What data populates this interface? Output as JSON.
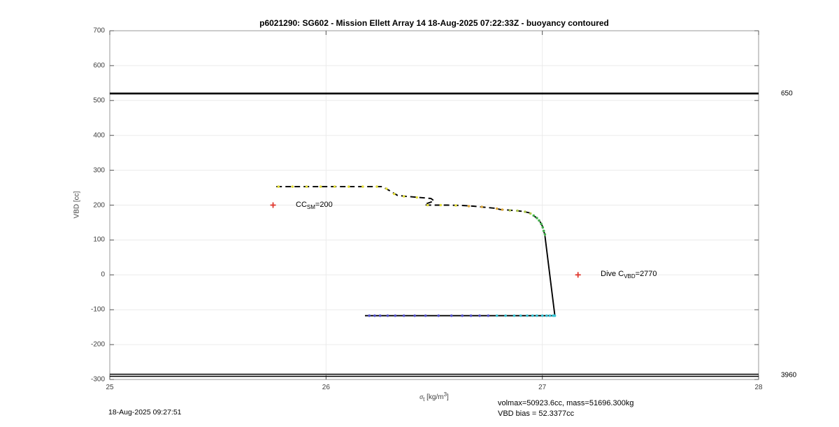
{
  "title": "p6021290: SG602 - Mission Ellett Array 14 18-Aug-2025 07:22:33Z - buoyancy contoured",
  "footer": {
    "datetime": "18-Aug-2025 09:27:51",
    "volmax_line": "volmax=50923.6cc, mass=51696.300kg",
    "bias_line": "VBD bias = 52.3377cc"
  },
  "chart_data": {
    "type": "line",
    "title": "p6021290: SG602 - Mission Ellett Array 14 18-Aug-2025 07:22:33Z - buoyancy contoured",
    "ylabel": "VBD [cc]",
    "xlabel_parts": [
      {
        "t": "σ",
        "style": "italic"
      },
      {
        "t": "t",
        "style": "sub"
      },
      {
        "t": " [kg/m",
        "style": ""
      },
      {
        "t": "3",
        "style": "sup"
      },
      {
        "t": "]",
        "style": ""
      }
    ],
    "xlim": [
      25,
      28
    ],
    "ylim": [
      -300,
      700
    ],
    "xticks": [
      25,
      26,
      27,
      28
    ],
    "yticks": [
      700,
      600,
      500,
      400,
      300,
      200,
      100,
      0,
      -100,
      -200,
      -300
    ],
    "grid": true,
    "limit_lines": [
      {
        "vbd": 520,
        "label": "650",
        "double": false
      },
      {
        "vbd": -288,
        "label": "3960",
        "double": true
      }
    ],
    "series": [
      {
        "name": "dive-profile",
        "style": "dashed",
        "points": [
          [
            25.77,
            253
          ],
          [
            26.26,
            253
          ],
          [
            26.295,
            241
          ],
          [
            26.33,
            228
          ],
          [
            26.37,
            225
          ],
          [
            26.43,
            222
          ],
          [
            26.485,
            219
          ],
          [
            26.5,
            212
          ],
          [
            26.455,
            202
          ],
          [
            26.465,
            200
          ],
          [
            26.56,
            200
          ],
          [
            26.63,
            199
          ],
          [
            26.68,
            197
          ],
          [
            26.73,
            194
          ],
          [
            26.78,
            191
          ],
          [
            26.81,
            187
          ],
          [
            26.84,
            186
          ],
          [
            26.88,
            184
          ],
          [
            26.91,
            182
          ],
          [
            26.94,
            178
          ],
          [
            26.955,
            172
          ],
          [
            26.975,
            163
          ],
          [
            26.99,
            152
          ],
          [
            27.0,
            140
          ],
          [
            27.005,
            128
          ],
          [
            27.012,
            115
          ]
        ]
      },
      {
        "name": "steep-descent-and-apogee",
        "style": "solid",
        "points": [
          [
            27.012,
            112
          ],
          [
            27.058,
            -117
          ],
          [
            26.18,
            -117
          ]
        ]
      }
    ],
    "markers": [
      {
        "color_key": "yellow",
        "points": [
          [
            25.78,
            253
          ],
          [
            25.845,
            253
          ],
          [
            25.91,
            253
          ],
          [
            25.975,
            253
          ],
          [
            26.04,
            253
          ],
          [
            26.105,
            253
          ],
          [
            26.17,
            253
          ],
          [
            26.235,
            253
          ],
          [
            26.28,
            247
          ],
          [
            26.315,
            232
          ],
          [
            26.36,
            225
          ],
          [
            26.42,
            222
          ],
          [
            26.47,
            200
          ],
          [
            26.53,
            200
          ],
          [
            26.6,
            199
          ]
        ]
      },
      {
        "color_key": "orange",
        "points": [
          [
            26.66,
            197
          ],
          [
            26.72,
            195
          ],
          [
            26.79,
            190
          ],
          [
            26.815,
            187
          ]
        ]
      },
      {
        "color_key": "yellowgreen",
        "points": [
          [
            26.85,
            185
          ],
          [
            26.885,
            184
          ],
          [
            26.92,
            181
          ],
          [
            26.945,
            176
          ]
        ]
      },
      {
        "color_key": "green",
        "points": [
          [
            26.96,
            170
          ],
          [
            26.975,
            163
          ],
          [
            26.985,
            156
          ],
          [
            26.995,
            146
          ],
          [
            27.002,
            136
          ],
          [
            27.007,
            126
          ],
          [
            27.012,
            116
          ]
        ]
      },
      {
        "color_key": "blue",
        "points": [
          [
            26.2,
            -117
          ],
          [
            26.225,
            -117
          ],
          [
            26.25,
            -117
          ],
          [
            26.285,
            -117
          ],
          [
            26.32,
            -117
          ],
          [
            26.36,
            -117
          ],
          [
            26.41,
            -117
          ],
          [
            26.46,
            -117
          ],
          [
            26.52,
            -117
          ],
          [
            26.58,
            -117
          ],
          [
            26.63,
            -117
          ],
          [
            26.67,
            -117
          ],
          [
            26.71,
            -117
          ],
          [
            26.75,
            -117
          ]
        ]
      },
      {
        "color_key": "cyan",
        "points": [
          [
            26.79,
            -117
          ],
          [
            26.83,
            -117
          ],
          [
            26.87,
            -117
          ],
          [
            26.9,
            -117
          ],
          [
            26.93,
            -117
          ],
          [
            26.955,
            -117
          ],
          [
            26.975,
            -117
          ],
          [
            27.0,
            -117
          ],
          [
            27.02,
            -117
          ],
          [
            27.035,
            -117
          ],
          [
            27.05,
            -117
          ],
          [
            27.058,
            -117
          ]
        ]
      }
    ],
    "ref_points": [
      {
        "name": "cc-sm",
        "sigma": 25.755,
        "vbd": 200,
        "marker": "plus",
        "label_sigma": 25.86,
        "label_parts": [
          {
            "t": "CC",
            "style": ""
          },
          {
            "t": "SM",
            "style": "sub"
          },
          {
            "t": "=200",
            "style": ""
          }
        ]
      },
      {
        "name": "dive-c-vbd",
        "sigma": 27.165,
        "vbd": 0,
        "marker": "plus",
        "label_sigma": 27.27,
        "label_parts": [
          {
            "t": "Dive C",
            "style": ""
          },
          {
            "t": "VBD",
            "style": "sub"
          },
          {
            "t": "=2770",
            "style": ""
          }
        ]
      }
    ],
    "colors": {
      "yellow": "#e4de3c",
      "orange": "#dfa83a",
      "yellowgreen": "#afc94b",
      "green": "#43b04d",
      "blue": "#5352cb",
      "cyan": "#37c4d5",
      "red": "#e0392f",
      "line": "#000000",
      "grid": "#ebebeb",
      "axis": "#999999",
      "tick": "#555555",
      "text": "#404040"
    }
  }
}
